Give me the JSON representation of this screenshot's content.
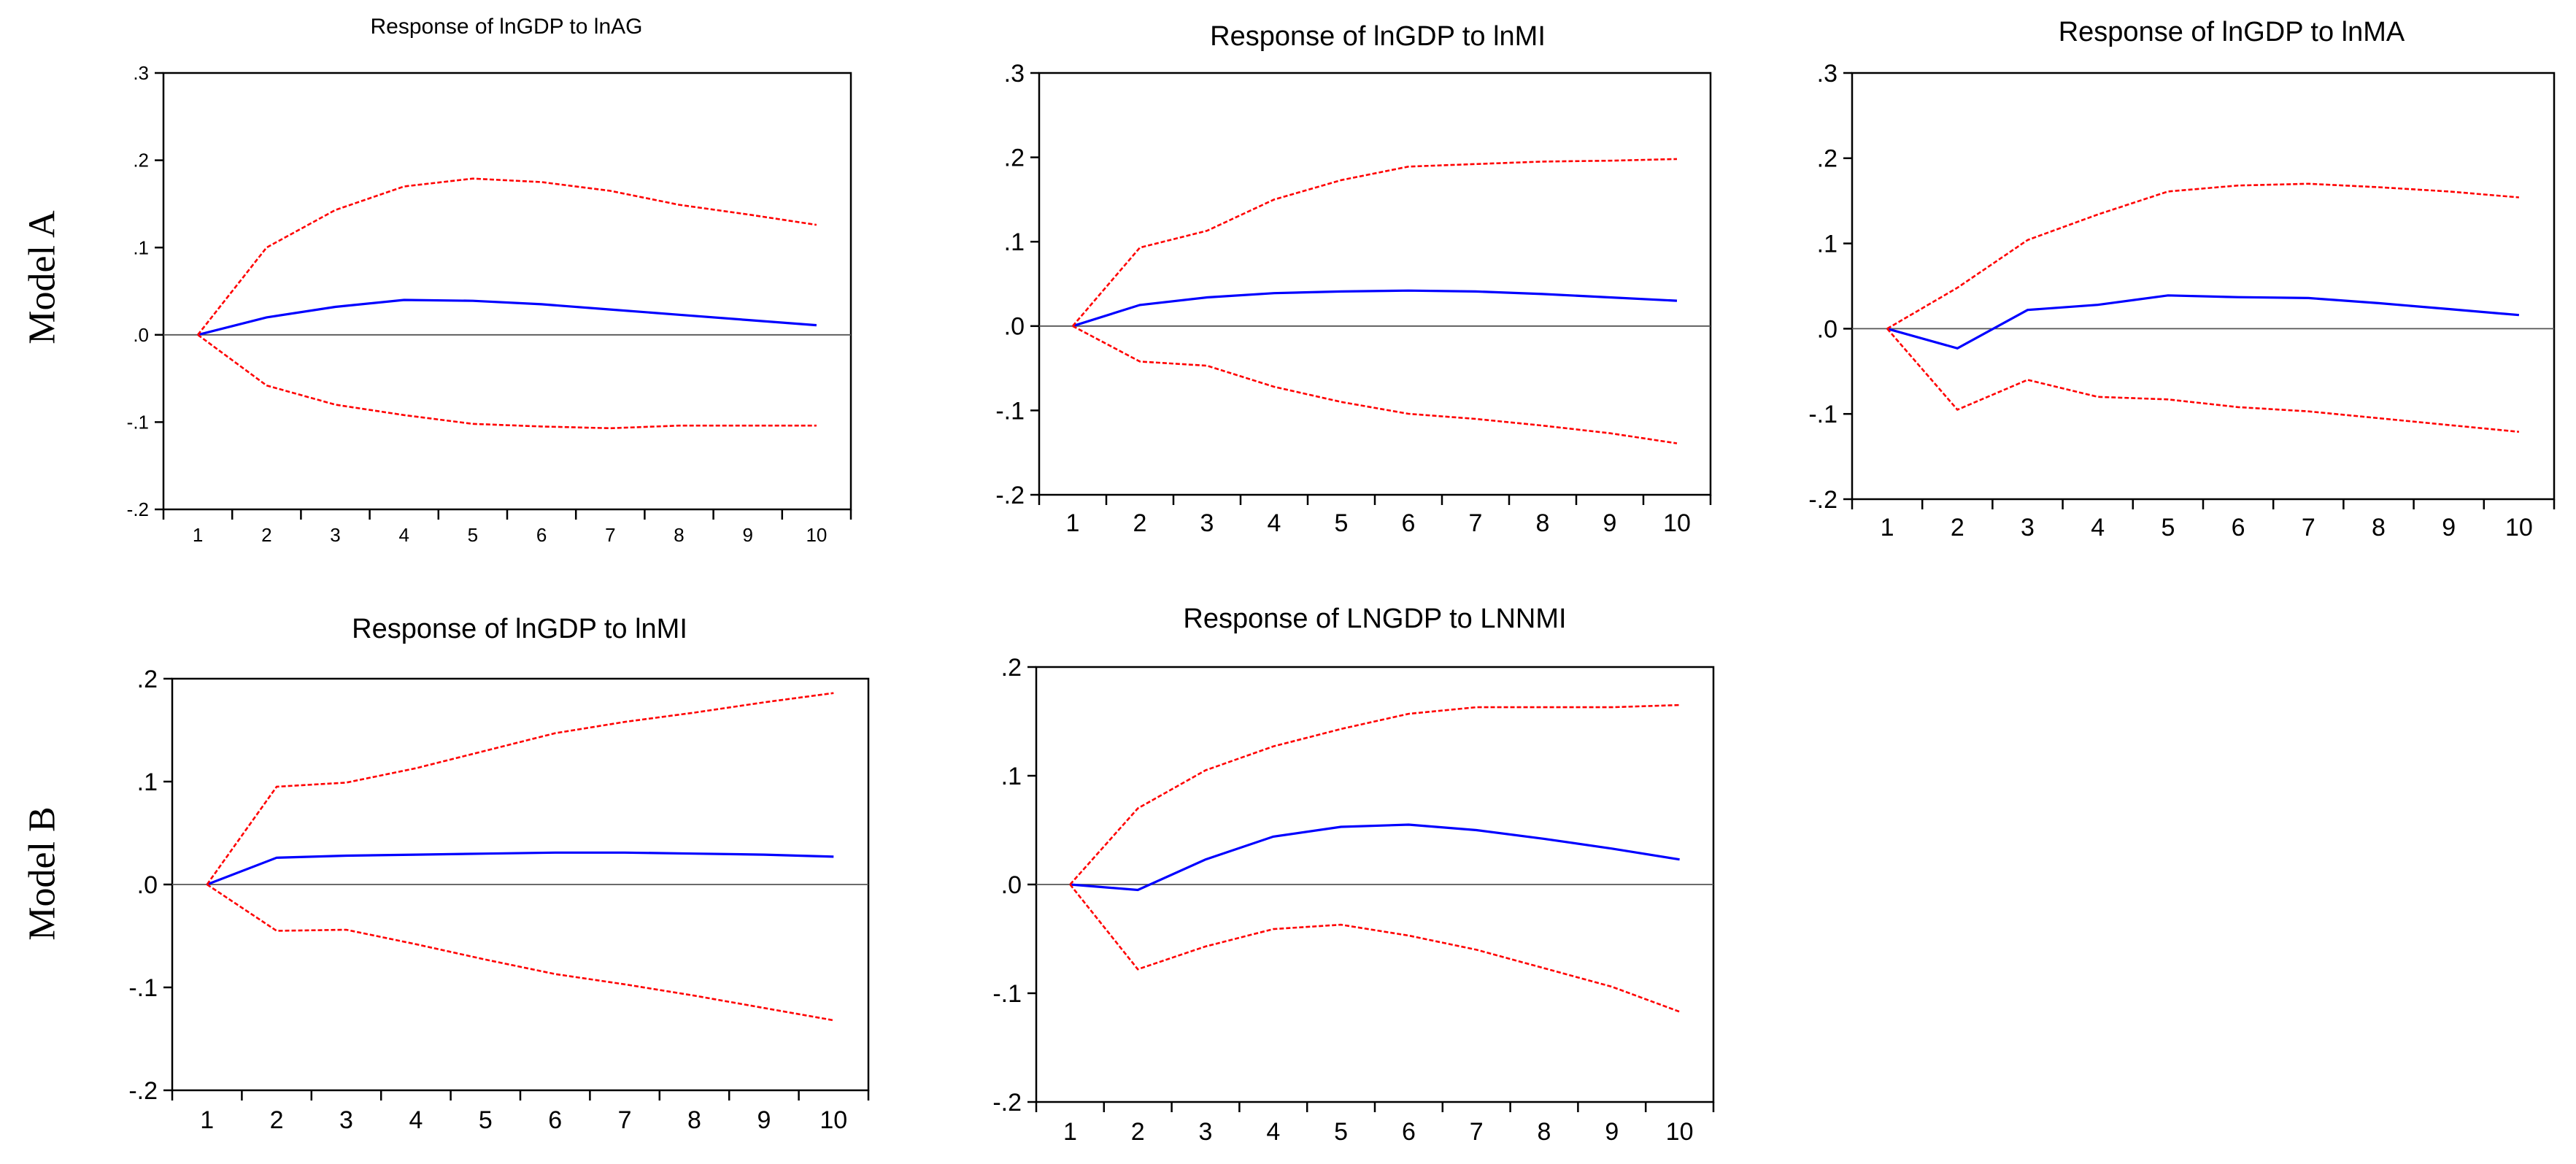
{
  "row_labels": [
    "Model A",
    "Model B"
  ],
  "chart_data": [
    {
      "type": "line",
      "title": "Response of lnGDP to lnAG",
      "x": [
        1,
        2,
        3,
        4,
        5,
        6,
        7,
        8,
        9,
        10
      ],
      "ylim": [
        -0.2,
        0.3
      ],
      "yticks": [
        -0.2,
        -0.1,
        0.0,
        0.1,
        0.2,
        0.3
      ],
      "ytick_labels": [
        "-.2",
        "-.1",
        ".0",
        ".1",
        ".2",
        ".3"
      ],
      "xtick_labels": [
        "1",
        "2",
        "3",
        "4",
        "5",
        "6",
        "7",
        "8",
        "9",
        "10"
      ],
      "zero_line": true,
      "series": [
        {
          "name": "Response",
          "color": "#0000ff",
          "style": "solid",
          "values": [
            0.0,
            0.02,
            0.032,
            0.04,
            0.039,
            0.035,
            0.029,
            0.023,
            0.017,
            0.011
          ]
        },
        {
          "name": "Upper band",
          "color": "#ff0000",
          "style": "dashed",
          "values": [
            0.0,
            0.1,
            0.143,
            0.17,
            0.179,
            0.175,
            0.165,
            0.149,
            0.138,
            0.126
          ]
        },
        {
          "name": "Lower band",
          "color": "#ff0000",
          "style": "dashed",
          "values": [
            0.0,
            -0.058,
            -0.08,
            -0.092,
            -0.102,
            -0.105,
            -0.107,
            -0.104,
            -0.104,
            -0.104
          ]
        }
      ]
    },
    {
      "type": "line",
      "title": "Response of lnGDP to lnMI",
      "x": [
        1,
        2,
        3,
        4,
        5,
        6,
        7,
        8,
        9,
        10
      ],
      "ylim": [
        -0.2,
        0.3
      ],
      "yticks": [
        -0.2,
        -0.1,
        0.0,
        0.1,
        0.2,
        0.3
      ],
      "ytick_labels": [
        "-.2",
        "-.1",
        ".0",
        ".1",
        ".2",
        ".3"
      ],
      "xtick_labels": [
        "1",
        "2",
        "3",
        "4",
        "5",
        "6",
        "7",
        "8",
        "9",
        "10"
      ],
      "zero_line": true,
      "series": [
        {
          "name": "Response",
          "color": "#0000ff",
          "style": "solid",
          "values": [
            0.0,
            0.025,
            0.034,
            0.039,
            0.041,
            0.042,
            0.041,
            0.038,
            0.034,
            0.03
          ]
        },
        {
          "name": "Upper band",
          "color": "#ff0000",
          "style": "dashed",
          "values": [
            0.0,
            0.093,
            0.113,
            0.15,
            0.173,
            0.189,
            0.192,
            0.195,
            0.196,
            0.198
          ]
        },
        {
          "name": "Lower band",
          "color": "#ff0000",
          "style": "dashed",
          "values": [
            0.0,
            -0.042,
            -0.047,
            -0.072,
            -0.09,
            -0.104,
            -0.11,
            -0.118,
            -0.127,
            -0.139
          ]
        }
      ]
    },
    {
      "type": "line",
      "title": "Response of lnGDP to lnMA",
      "x": [
        1,
        2,
        3,
        4,
        5,
        6,
        7,
        8,
        9,
        10
      ],
      "ylim": [
        -0.2,
        0.3
      ],
      "yticks": [
        -0.2,
        -0.1,
        0.0,
        0.1,
        0.2,
        0.3
      ],
      "ytick_labels": [
        "-.2",
        "-.1",
        ".0",
        ".1",
        ".2",
        ".3"
      ],
      "xtick_labels": [
        "1",
        "2",
        "3",
        "4",
        "5",
        "6",
        "7",
        "8",
        "9",
        "10"
      ],
      "zero_line": true,
      "series": [
        {
          "name": "Response",
          "color": "#0000ff",
          "style": "solid",
          "values": [
            0.0,
            -0.023,
            0.022,
            0.028,
            0.039,
            0.037,
            0.036,
            0.03,
            0.023,
            0.016
          ]
        },
        {
          "name": "Upper band",
          "color": "#ff0000",
          "style": "dashed",
          "values": [
            0.0,
            0.048,
            0.104,
            0.134,
            0.161,
            0.168,
            0.17,
            0.166,
            0.161,
            0.154
          ]
        },
        {
          "name": "Lower band",
          "color": "#ff0000",
          "style": "dashed",
          "values": [
            0.0,
            -0.095,
            -0.06,
            -0.08,
            -0.083,
            -0.092,
            -0.097,
            -0.105,
            -0.113,
            -0.121
          ]
        }
      ]
    },
    {
      "type": "line",
      "title": "Response of lnGDP to lnMI",
      "x": [
        1,
        2,
        3,
        4,
        5,
        6,
        7,
        8,
        9,
        10
      ],
      "ylim": [
        -0.2,
        0.2
      ],
      "yticks": [
        -0.2,
        -0.1,
        0.0,
        0.1,
        0.2
      ],
      "ytick_labels": [
        "-.2",
        "-.1",
        ".0",
        ".1",
        ".2"
      ],
      "xtick_labels": [
        "1",
        "2",
        "3",
        "4",
        "5",
        "6",
        "7",
        "8",
        "9",
        "10"
      ],
      "zero_line": true,
      "series": [
        {
          "name": "Response",
          "color": "#0000ff",
          "style": "solid",
          "values": [
            0.0,
            0.026,
            0.028,
            0.029,
            0.03,
            0.031,
            0.031,
            0.03,
            0.029,
            0.027
          ]
        },
        {
          "name": "Upper band",
          "color": "#ff0000",
          "style": "dashed",
          "values": [
            0.0,
            0.095,
            0.099,
            0.113,
            0.13,
            0.147,
            0.158,
            0.167,
            0.177,
            0.186
          ]
        },
        {
          "name": "Lower band",
          "color": "#ff0000",
          "style": "dashed",
          "values": [
            0.0,
            -0.045,
            -0.044,
            -0.058,
            -0.073,
            -0.087,
            -0.097,
            -0.108,
            -0.12,
            -0.132
          ]
        }
      ]
    },
    {
      "type": "line",
      "title": "Response of LNGDP to LNNMI",
      "x": [
        1,
        2,
        3,
        4,
        5,
        6,
        7,
        8,
        9,
        10
      ],
      "ylim": [
        -0.2,
        0.2
      ],
      "yticks": [
        -0.2,
        -0.1,
        0.0,
        0.1,
        0.2
      ],
      "ytick_labels": [
        "-.2",
        "-.1",
        ".0",
        ".1",
        ".2"
      ],
      "xtick_labels": [
        "1",
        "2",
        "3",
        "4",
        "5",
        "6",
        "7",
        "8",
        "9",
        "10"
      ],
      "zero_line": true,
      "series": [
        {
          "name": "Response",
          "color": "#0000ff",
          "style": "solid",
          "values": [
            0.0,
            -0.005,
            0.023,
            0.044,
            0.053,
            0.055,
            0.05,
            0.042,
            0.033,
            0.023
          ]
        },
        {
          "name": "Upper band",
          "color": "#ff0000",
          "style": "dashed",
          "values": [
            0.0,
            0.07,
            0.105,
            0.127,
            0.143,
            0.157,
            0.163,
            0.163,
            0.163,
            0.165
          ]
        },
        {
          "name": "Lower band",
          "color": "#ff0000",
          "style": "dashed",
          "values": [
            0.0,
            -0.078,
            -0.057,
            -0.041,
            -0.037,
            -0.047,
            -0.06,
            -0.077,
            -0.094,
            -0.117
          ]
        }
      ]
    }
  ]
}
